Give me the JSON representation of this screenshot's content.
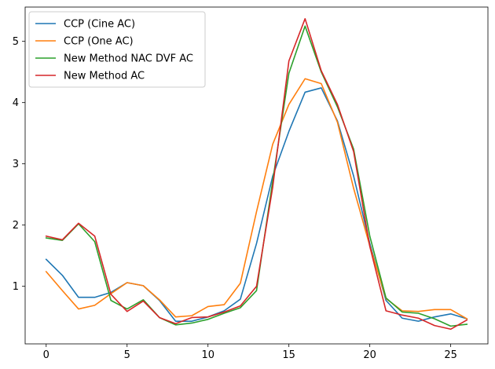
{
  "chart_data": {
    "type": "line",
    "title": "",
    "xlabel": "",
    "ylabel": "",
    "xlim": [
      -1.3,
      27.3
    ],
    "ylim": [
      0.06,
      5.56
    ],
    "xticks": [
      0,
      5,
      10,
      15,
      20,
      25
    ],
    "yticks": [
      1,
      2,
      3,
      4,
      5
    ],
    "grid": false,
    "legend_position": "top-left",
    "x": [
      0,
      1,
      2,
      3,
      4,
      5,
      6,
      7,
      8,
      9,
      10,
      11,
      12,
      13,
      14,
      15,
      16,
      17,
      18,
      19,
      20,
      21,
      22,
      23,
      24,
      25,
      26
    ],
    "series": [
      {
        "name": "CCP (Cine AC)",
        "color": "#1f77b4",
        "values": [
          1.44,
          1.18,
          0.82,
          0.82,
          0.9,
          1.06,
          1.01,
          0.77,
          0.43,
          0.43,
          0.5,
          0.6,
          0.79,
          1.7,
          2.8,
          3.53,
          4.17,
          4.24,
          3.7,
          2.8,
          1.7,
          0.77,
          0.48,
          0.43,
          0.5,
          0.55,
          0.47
        ]
      },
      {
        "name": "CCP (One AC)",
        "color": "#ff7f0e",
        "values": [
          1.24,
          0.93,
          0.63,
          0.69,
          0.88,
          1.06,
          1.01,
          0.78,
          0.5,
          0.52,
          0.67,
          0.7,
          1.05,
          2.22,
          3.32,
          3.97,
          4.39,
          4.31,
          3.68,
          2.6,
          1.66,
          0.8,
          0.6,
          0.59,
          0.62,
          0.62,
          0.47
        ]
      },
      {
        "name": "New Method NAC DVF AC",
        "color": "#2ca02c",
        "values": [
          1.79,
          1.75,
          2.02,
          1.73,
          0.77,
          0.63,
          0.78,
          0.49,
          0.37,
          0.4,
          0.46,
          0.56,
          0.65,
          0.93,
          2.72,
          4.48,
          5.25,
          4.5,
          3.93,
          3.24,
          1.82,
          0.81,
          0.58,
          0.56,
          0.47,
          0.35,
          0.38
        ]
      },
      {
        "name": "New Method AC",
        "color": "#d62728",
        "values": [
          1.82,
          1.76,
          2.03,
          1.82,
          0.87,
          0.59,
          0.76,
          0.49,
          0.39,
          0.49,
          0.5,
          0.58,
          0.68,
          1.0,
          2.62,
          4.68,
          5.37,
          4.52,
          3.97,
          3.2,
          1.65,
          0.6,
          0.53,
          0.48,
          0.36,
          0.3,
          0.45
        ]
      }
    ]
  }
}
